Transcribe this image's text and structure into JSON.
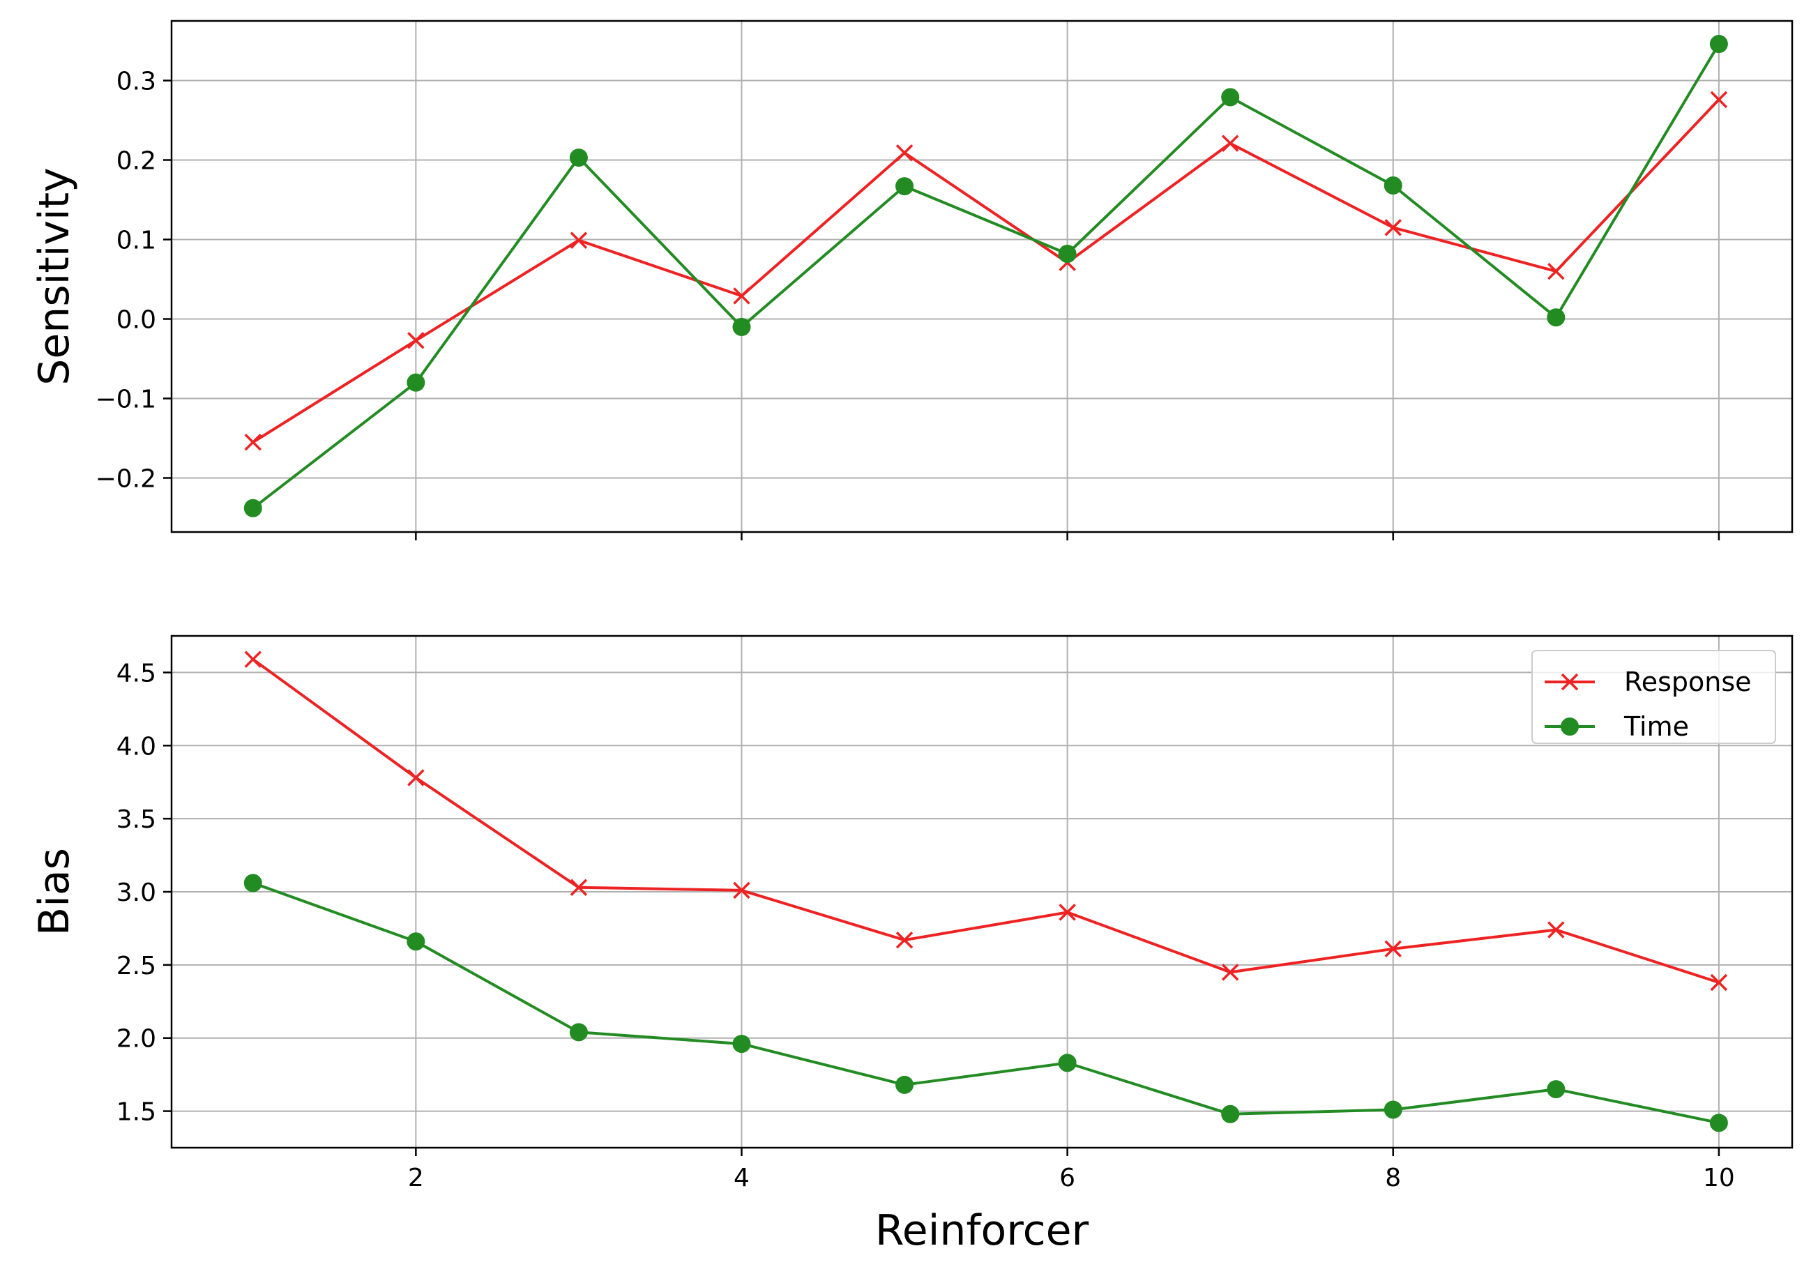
{
  "colors": {
    "response": "#ee2222",
    "time": "#228b22",
    "grid": "#b0b0b0",
    "frame": "#000000"
  },
  "legend": {
    "placement": "top-right",
    "panel": "bottom"
  },
  "chart_data": [
    {
      "type": "line",
      "ylabel": "Sensitivity",
      "xlabel": "",
      "x": [
        1,
        2,
        3,
        4,
        5,
        6,
        7,
        8,
        9,
        10
      ],
      "xlim": [
        0.5,
        10.45
      ],
      "ylim": [
        -0.268,
        0.375
      ],
      "xticks": [
        "2",
        "4",
        "6",
        "8",
        "10"
      ],
      "xtick_values": [
        2,
        4,
        6,
        8,
        10
      ],
      "xticklabels_visible": false,
      "yticks": [
        "−0.2",
        "−0.1",
        "0.0",
        "0.1",
        "0.2",
        "0.3"
      ],
      "ytick_values": [
        -0.2,
        -0.1,
        0.0,
        0.1,
        0.2,
        0.3
      ],
      "grid": true,
      "series": [
        {
          "name": "Response",
          "marker": "x",
          "color": "#ee2222",
          "values": [
            -0.155,
            -0.027,
            0.099,
            0.029,
            0.209,
            0.071,
            0.221,
            0.115,
            0.06,
            0.276
          ]
        },
        {
          "name": "Time",
          "marker": "o",
          "color": "#228b22",
          "values": [
            -0.238,
            -0.08,
            0.203,
            -0.01,
            0.167,
            0.082,
            0.279,
            0.168,
            0.002,
            0.346
          ]
        }
      ]
    },
    {
      "type": "line",
      "ylabel": "Bias",
      "xlabel": "Reinforcer",
      "x": [
        1,
        2,
        3,
        4,
        5,
        6,
        7,
        8,
        9,
        10
      ],
      "xlim": [
        0.5,
        10.45
      ],
      "ylim": [
        1.25,
        4.75
      ],
      "xticks": [
        "2",
        "4",
        "6",
        "8",
        "10"
      ],
      "xtick_values": [
        2,
        4,
        6,
        8,
        10
      ],
      "xticklabels_visible": true,
      "yticks": [
        "1.5",
        "2.0",
        "2.5",
        "3.0",
        "3.5",
        "4.0",
        "4.5"
      ],
      "ytick_values": [
        1.5,
        2.0,
        2.5,
        3.0,
        3.5,
        4.0,
        4.5
      ],
      "grid": true,
      "series": [
        {
          "name": "Response",
          "marker": "x",
          "color": "#ee2222",
          "values": [
            4.59,
            3.78,
            3.03,
            3.01,
            2.67,
            2.86,
            2.45,
            2.61,
            2.74,
            2.38
          ]
        },
        {
          "name": "Time",
          "marker": "o",
          "color": "#228b22",
          "values": [
            3.06,
            2.66,
            2.04,
            1.96,
            1.68,
            1.83,
            1.48,
            1.51,
            1.65,
            1.42
          ]
        }
      ]
    }
  ]
}
